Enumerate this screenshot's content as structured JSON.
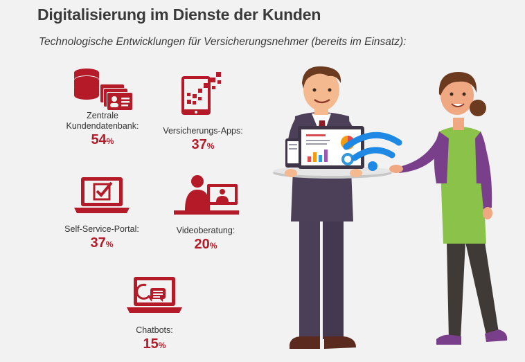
{
  "title": "Digitalisierung im Dienste der Kunden",
  "subtitle": "Technologische Entwicklungen für Versicherungsnehmer (bereits im Einsatz):",
  "accent_color": "#b51a28",
  "chart_data": {
    "type": "table",
    "unit": "%",
    "categories": [
      "Zentrale Kundendatenbank",
      "Versicherungs-Apps",
      "Self-Service-Portal",
      "Videoberatung",
      "Chatbots"
    ],
    "values": [
      54,
      37,
      37,
      20,
      15
    ]
  },
  "items": [
    {
      "label_line1": "Zentrale",
      "label_line2": "Kundendatenbank:",
      "value": "54",
      "unit": "%",
      "icon": "database-icon"
    },
    {
      "label_line1": "",
      "label_line2": "Versicherungs-Apps:",
      "value": "37",
      "unit": "%",
      "icon": "tablet-app-icon"
    },
    {
      "label_line1": "",
      "label_line2": "Self-Service-Portal:",
      "value": "37",
      "unit": "%",
      "icon": "laptop-checkbox-icon"
    },
    {
      "label_line1": "",
      "label_line2": "Videoberatung:",
      "value": "20",
      "unit": "%",
      "icon": "video-consultation-icon"
    },
    {
      "label_line1": "",
      "label_line2": "Chatbots:",
      "value": "15",
      "unit": "%",
      "icon": "laptop-chat-icon"
    }
  ]
}
